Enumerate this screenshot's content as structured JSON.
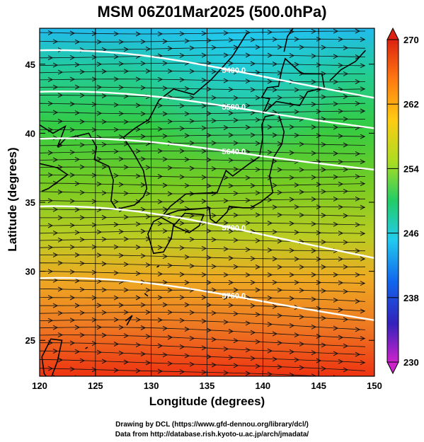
{
  "title": "MSM 06Z01Mar2025 (500.0hPa)",
  "xlabel": "Longitude (degrees)",
  "ylabel": "Latitude  (degrees)",
  "credits": {
    "line1": "Drawing by DCL (https://www.gfd-dennou.org/library/dcl/)",
    "line2": "Data from http://database.rish.kyoto-u.ac.jp/arch/jmadata/"
  },
  "chart_data": {
    "type": "heatmap",
    "title": "MSM 06Z01Mar2025 (500.0hPa)",
    "xlabel": "Longitude (degrees)",
    "ylabel": "Latitude  (degrees)",
    "xlim": [
      120,
      150
    ],
    "ylim": [
      22.4,
      47.6
    ],
    "xticks": [
      120,
      125,
      130,
      135,
      140,
      145,
      150
    ],
    "yticks": [
      25,
      30,
      35,
      40,
      45
    ],
    "colorbar": {
      "range": [
        230,
        270
      ],
      "ticks": [
        270,
        262,
        254,
        246,
        238,
        230
      ],
      "colors": [
        "#cc22cc",
        "#3322bb",
        "#1166ee",
        "#22ccee",
        "#22cc66",
        "#aadd22",
        "#ffcc11",
        "#ff7711",
        "#dd2211"
      ]
    },
    "height_contours": [
      {
        "label": "5400.0",
        "lat_start": 46.0,
        "lat_end": 42.6
      },
      {
        "label": "5580.0",
        "lat_start": 43.0,
        "lat_end": 40.4
      },
      {
        "label": "5640.0",
        "lat_start": 39.6,
        "lat_end": 37.4
      },
      {
        "label": "5700.0",
        "lat_start": 34.7,
        "lat_end": 31.0
      },
      {
        "label": "5760.0",
        "lat_start": 29.5,
        "lat_end": 26.5
      }
    ],
    "grid": true
  }
}
